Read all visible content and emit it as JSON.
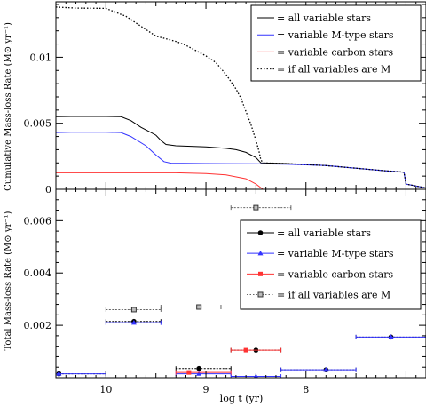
{
  "chart_data": [
    {
      "type": "line",
      "ylabel": "Cumulative  Mass-loss Rate (M⊙ yr⁻¹)",
      "xlim": [
        10.5,
        6.8
      ],
      "ylim": [
        0,
        0.0142
      ],
      "x_reversed": true,
      "y_ticks": [
        0,
        0.005,
        0.01
      ],
      "y_tick_labels": [
        "0",
        "0.005",
        "0.01"
      ],
      "legend_position": "top-right",
      "series": [
        {
          "name": "= all variable stars",
          "color": "#000000",
          "style": "solid",
          "points": [
            [
              10.5,
              0.0055
            ],
            [
              10.35,
              0.00552
            ],
            [
              10.0,
              0.00552
            ],
            [
              9.85,
              0.0055
            ],
            [
              9.75,
              0.0052
            ],
            [
              9.65,
              0.0047
            ],
            [
              9.55,
              0.0043
            ],
            [
              9.5,
              0.0041
            ],
            [
              9.45,
              0.0037
            ],
            [
              9.4,
              0.0034
            ],
            [
              9.3,
              0.0033
            ],
            [
              9.0,
              0.00322
            ],
            [
              8.8,
              0.0031
            ],
            [
              8.7,
              0.003
            ],
            [
              8.6,
              0.0028
            ],
            [
              8.5,
              0.0024
            ],
            [
              8.45,
              0.002
            ],
            [
              8.2,
              0.00195
            ],
            [
              7.8,
              0.0018
            ],
            [
              7.5,
              0.0016
            ],
            [
              7.2,
              0.0014
            ],
            [
              7.02,
              0.0013
            ],
            [
              7.0,
              0.0004
            ],
            [
              6.8,
              0.0001
            ]
          ]
        },
        {
          "name": "= variable M-type stars",
          "color": "#3333ff",
          "style": "solid",
          "points": [
            [
              10.5,
              0.0043
            ],
            [
              10.35,
              0.00432
            ],
            [
              10.0,
              0.00432
            ],
            [
              9.85,
              0.0043
            ],
            [
              9.75,
              0.004
            ],
            [
              9.6,
              0.0033
            ],
            [
              9.5,
              0.0026
            ],
            [
              9.42,
              0.0021
            ],
            [
              9.35,
              0.00198
            ],
            [
              9.0,
              0.00195
            ],
            [
              8.5,
              0.00193
            ],
            [
              8.2,
              0.0019
            ],
            [
              7.8,
              0.0018
            ],
            [
              7.5,
              0.0016
            ],
            [
              7.2,
              0.0014
            ],
            [
              7.02,
              0.0013
            ],
            [
              7.0,
              0.0004
            ],
            [
              6.8,
              0.0001
            ]
          ]
        },
        {
          "name": "= variable carbon stars",
          "color": "#ff3333",
          "style": "solid",
          "points": [
            [
              10.5,
              0.00125
            ],
            [
              9.3,
              0.00125
            ],
            [
              9.0,
              0.0012
            ],
            [
              8.8,
              0.0011
            ],
            [
              8.6,
              0.0008
            ],
            [
              8.5,
              0.0004
            ],
            [
              8.43,
              0.0
            ]
          ]
        },
        {
          "name": "= if all variables are M",
          "color": "#000000",
          "style": "dotted",
          "points": [
            [
              10.5,
              0.0138
            ],
            [
              10.3,
              0.01372
            ],
            [
              10.0,
              0.0137
            ],
            [
              9.9,
              0.0134
            ],
            [
              9.8,
              0.0131
            ],
            [
              9.7,
              0.0126
            ],
            [
              9.6,
              0.0121
            ],
            [
              9.5,
              0.0116
            ],
            [
              9.4,
              0.0114
            ],
            [
              9.3,
              0.0112
            ],
            [
              9.2,
              0.0109
            ],
            [
              9.1,
              0.0105
            ],
            [
              9.0,
              0.0101
            ],
            [
              8.9,
              0.0096
            ],
            [
              8.8,
              0.0087
            ],
            [
              8.7,
              0.0076
            ],
            [
              8.65,
              0.0069
            ],
            [
              8.6,
              0.0059
            ],
            [
              8.55,
              0.0049
            ],
            [
              8.5,
              0.0037
            ],
            [
              8.47,
              0.0029
            ],
            [
              8.45,
              0.0022
            ],
            [
              8.42,
              0.002
            ],
            [
              8.2,
              0.00195
            ],
            [
              7.8,
              0.0018
            ],
            [
              7.5,
              0.0016
            ],
            [
              7.2,
              0.0014
            ],
            [
              7.02,
              0.0013
            ],
            [
              7.0,
              0.0004
            ],
            [
              6.8,
              0.0001
            ]
          ]
        }
      ]
    },
    {
      "type": "scatter",
      "ylabel": "Total  Mass-loss Rate (M⊙ yr⁻¹)",
      "xlabel": "log t (yr)",
      "xlim": [
        10.5,
        6.8
      ],
      "ylim": [
        0,
        0.0072
      ],
      "x_reversed": true,
      "x_ticks": [
        10,
        9,
        8
      ],
      "x_tick_labels": [
        "10",
        "9",
        "8"
      ],
      "y_ticks": [
        0.002,
        0.004,
        0.006
      ],
      "y_tick_labels": [
        "0.002",
        "0.004",
        "0.006"
      ],
      "legend_position": "top-right",
      "series": [
        {
          "name": "= all variable stars",
          "color": "#000000",
          "marker": "circle",
          "points": [
            {
              "x": 10.47,
              "y": 0.00015,
              "xerr": [
                10.5,
                10.0
              ]
            },
            {
              "x": 9.72,
              "y": 0.00215,
              "xerr": [
                10.0,
                9.45
              ]
            },
            {
              "x": 9.07,
              "y": 0.00035,
              "xerr": [
                9.3,
                8.75
              ]
            },
            {
              "x": 8.5,
              "y": 0.00105,
              "xerr": [
                8.75,
                8.25
              ]
            },
            {
              "x": 7.8,
              "y": 0.0003,
              "xerr": [
                8.25,
                7.5
              ]
            },
            {
              "x": 7.15,
              "y": 0.00155,
              "xerr": [
                7.5,
                6.8
              ]
            }
          ]
        },
        {
          "name": "= variable M-type stars",
          "color": "#3333ff",
          "marker": "triangle",
          "points": [
            {
              "x": 10.47,
              "y": 0.00015,
              "xerr": [
                10.5,
                10.0
              ]
            },
            {
              "x": 9.72,
              "y": 0.0021,
              "xerr": [
                10.0,
                9.45
              ]
            },
            {
              "x": 9.07,
              "y": 0.00015,
              "xerr": [
                9.3,
                8.75
              ]
            },
            {
              "x": 8.5,
              "y": 5e-05,
              "xerr": [
                8.75,
                8.25
              ]
            },
            {
              "x": 7.8,
              "y": 0.0003,
              "xerr": [
                8.25,
                7.5
              ]
            },
            {
              "x": 7.15,
              "y": 0.00155,
              "xerr": [
                7.5,
                6.8
              ]
            }
          ]
        },
        {
          "name": "= variable carbon stars",
          "color": "#ff3333",
          "marker": "square",
          "points": [
            {
              "x": 9.17,
              "y": 0.0002,
              "xerr": [
                9.3,
                8.75
              ]
            },
            {
              "x": 8.6,
              "y": 0.00105,
              "xerr": [
                8.75,
                8.25
              ]
            }
          ]
        },
        {
          "name": "= if all variables are M",
          "color": "#666666",
          "marker": "open-square",
          "points": [
            {
              "x": 9.72,
              "y": 0.0026,
              "xerr": [
                10.0,
                9.45
              ]
            },
            {
              "x": 9.07,
              "y": 0.0027,
              "xerr": [
                9.45,
                8.85
              ]
            },
            {
              "x": 8.5,
              "y": 0.0065,
              "xerr": [
                8.75,
                8.15
              ]
            }
          ]
        }
      ]
    }
  ]
}
